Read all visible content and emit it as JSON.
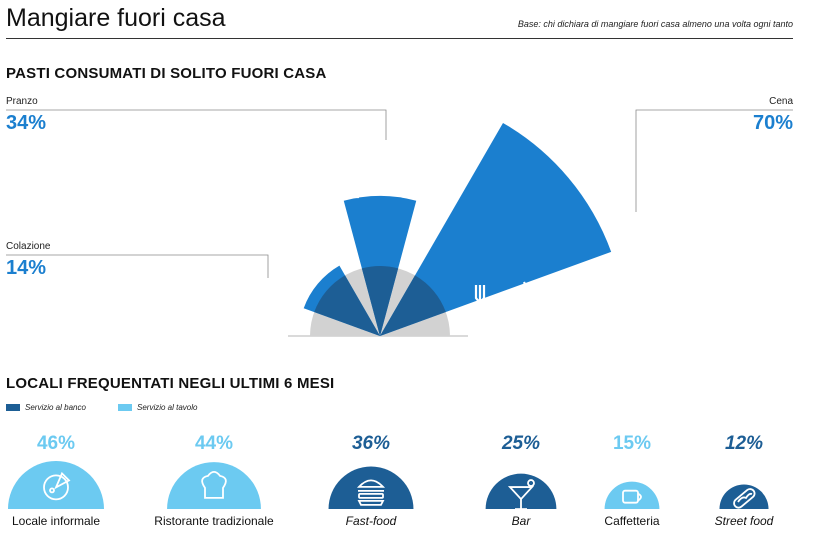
{
  "header": {
    "title": "Mangiare fuori casa",
    "base_note": "Base: chi dichiara di mangiare fuori casa almeno una volta ogni tanto"
  },
  "meals": {
    "section_title": "PASTI CONSUMATI DI SOLITO FUORI CASA",
    "items": [
      {
        "label": "Colazione",
        "pct": "14%"
      },
      {
        "label": "Pranzo",
        "pct": "34%"
      },
      {
        "label": "Cena",
        "pct": "70%"
      }
    ]
  },
  "venues": {
    "section_title": "LOCALI FREQUENTATI NEGLI ULTIMI 6 MESI",
    "legend": [
      {
        "label": "Servizio al banco",
        "color": "#1d5e95"
      },
      {
        "label": "Servizio al tavolo",
        "color": "#6ccaf1"
      }
    ],
    "items": [
      {
        "name": "Locale informale",
        "pct": "46%",
        "service": "Servizio al tavolo",
        "icon": "pizza-icon"
      },
      {
        "name": "Ristorante tradizionale",
        "pct": "44%",
        "service": "Servizio al tavolo",
        "icon": "chef-hat-icon"
      },
      {
        "name": "Fast-food",
        "pct": "36%",
        "service": "Servizio al banco",
        "icon": "burger-icon"
      },
      {
        "name": "Bar",
        "pct": "25%",
        "service": "Servizio al banco",
        "icon": "cocktail-icon"
      },
      {
        "name": "Caffetteria",
        "pct": "15%",
        "service": "Servizio al tavolo",
        "icon": "coffee-cup-icon"
      },
      {
        "name": "Street food",
        "pct": "12%",
        "service": "Servizio al banco",
        "icon": "hotdog-icon"
      }
    ]
  },
  "chart_data": [
    {
      "type": "radial-bar",
      "title": "PASTI CONSUMATI DI SOLITO FUORI CASA",
      "categories": [
        "Colazione",
        "Pranzo",
        "Cena"
      ],
      "values": [
        14,
        34,
        70
      ],
      "unit": "%",
      "colors": {
        "bar": "#1b7fcf",
        "overlap": "#1d5e95",
        "base": "#d2d2d2"
      }
    },
    {
      "type": "bar",
      "title": "LOCALI FREQUENTATI NEGLI ULTIMI 6 MESI",
      "categories": [
        "Locale informale",
        "Ristorante tradizionale",
        "Fast-food",
        "Bar",
        "Caffetteria",
        "Street food"
      ],
      "values": [
        46,
        44,
        36,
        25,
        15,
        12
      ],
      "unit": "%",
      "series_by_category": [
        "Servizio al tavolo",
        "Servizio al tavolo",
        "Servizio al banco",
        "Servizio al banco",
        "Servizio al tavolo",
        "Servizio al banco"
      ]
    }
  ]
}
